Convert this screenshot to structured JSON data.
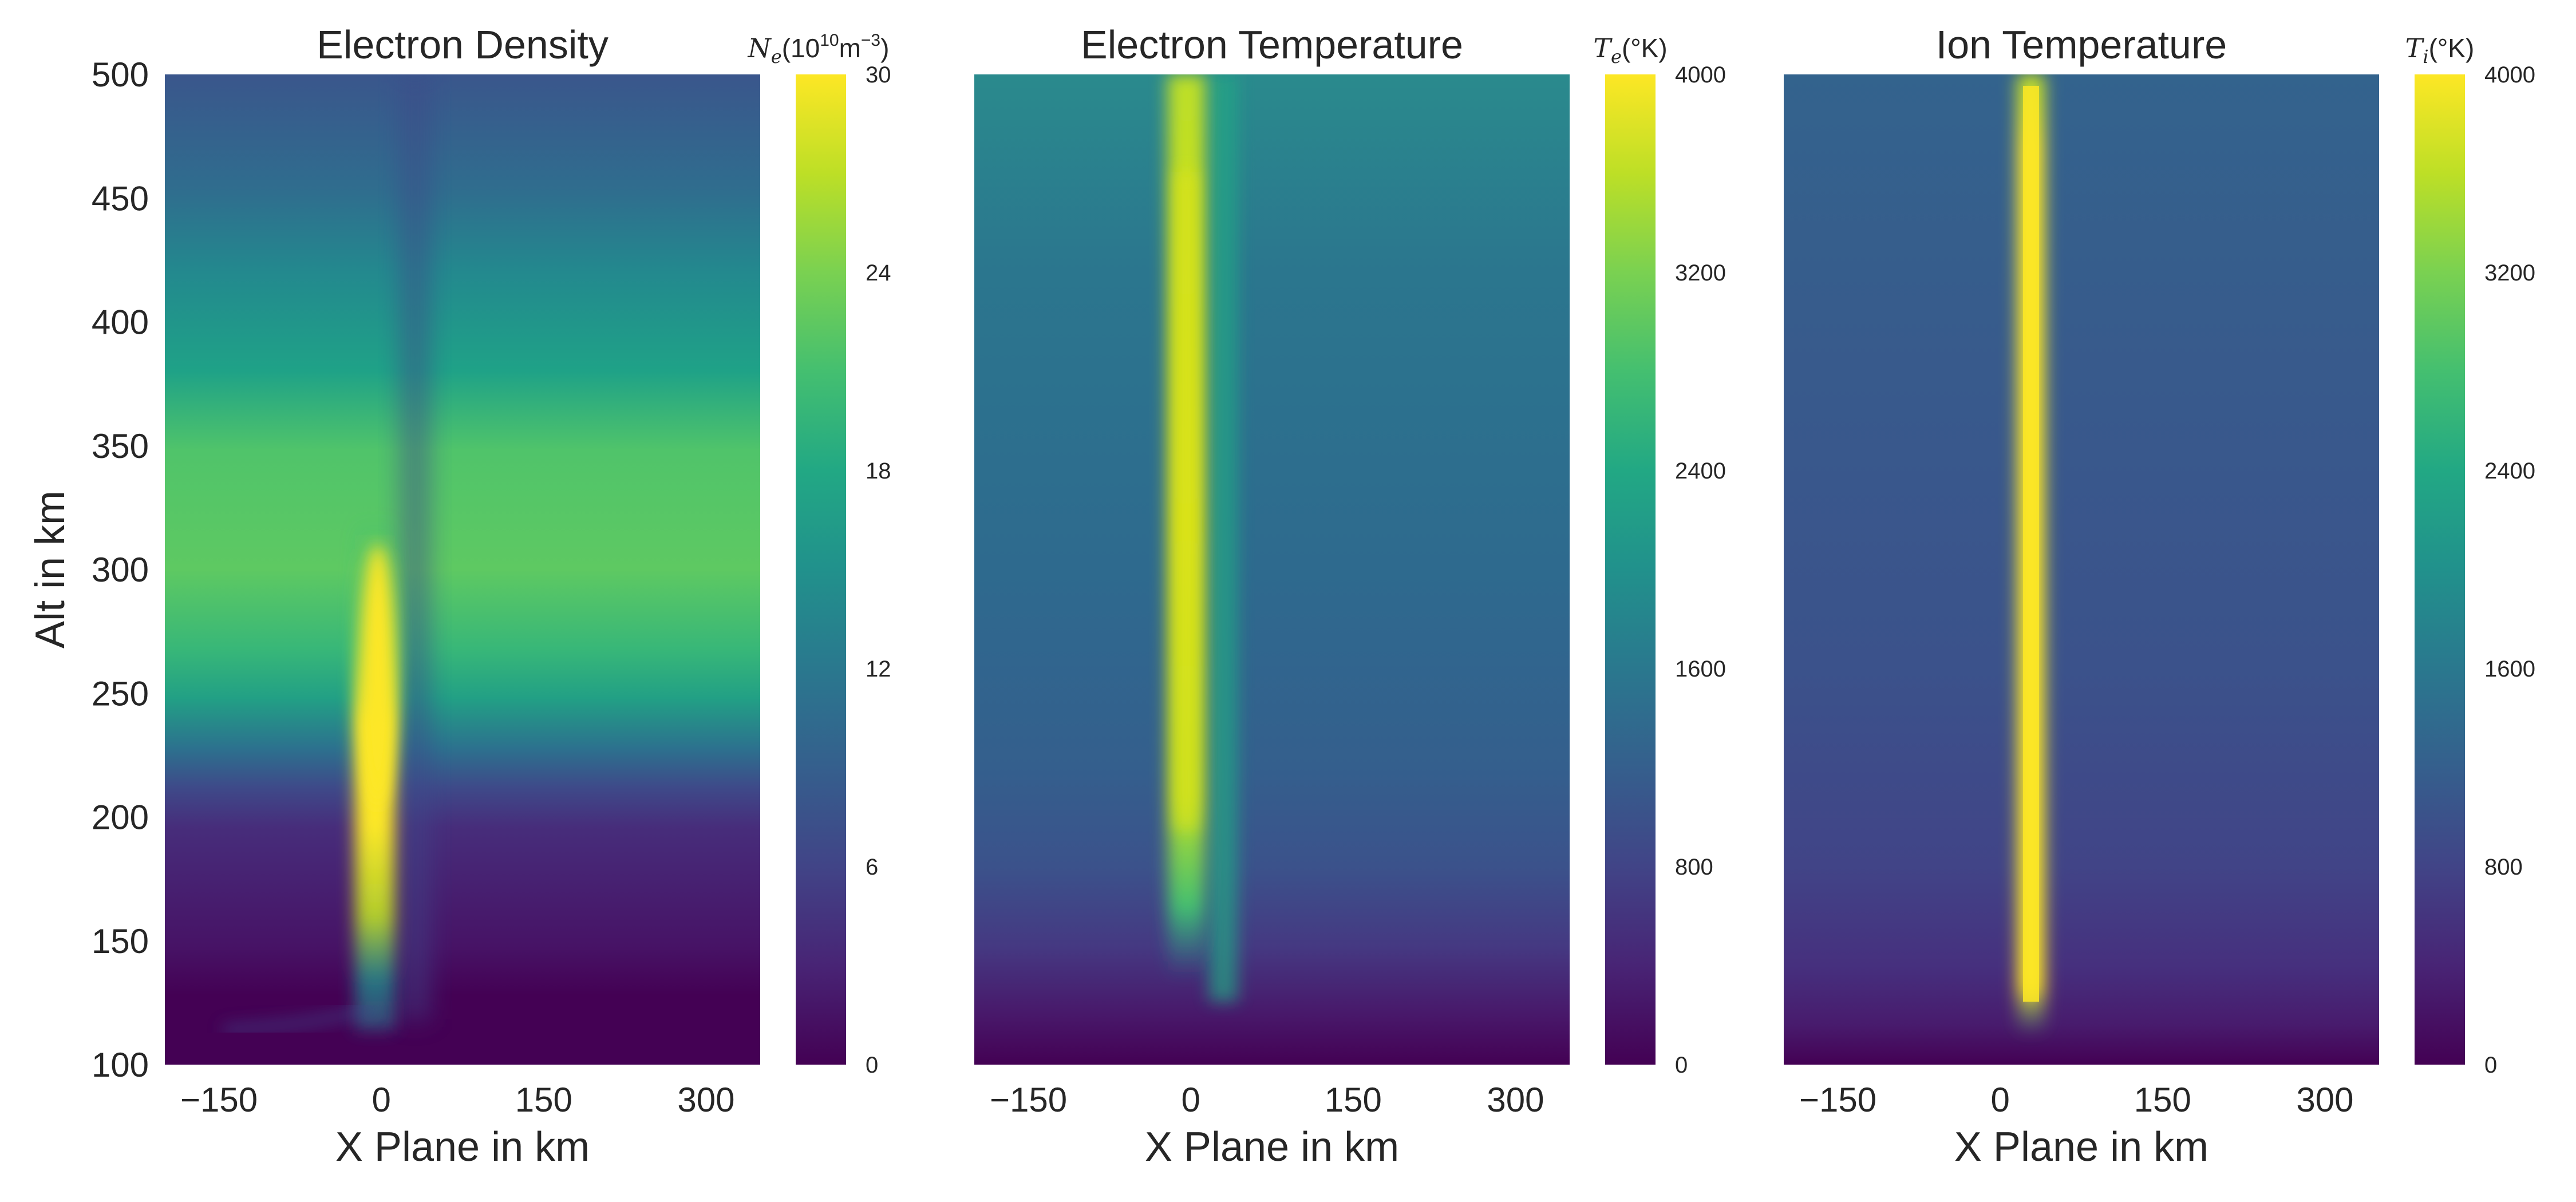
{
  "chart_data": [
    {
      "type": "heatmap",
      "title": "Electron Density",
      "xlabel": "X Plane in km",
      "ylabel": "Alt in km",
      "xlim": [
        -200,
        350
      ],
      "ylim": [
        100,
        500
      ],
      "xticks": [
        "−150",
        "0",
        "150",
        "300"
      ],
      "yticks": [
        "100",
        "150",
        "200",
        "250",
        "300",
        "350",
        "400",
        "450",
        "500"
      ],
      "colorbar": {
        "label": "N_e(10^10 m^-3)",
        "min": 0,
        "max": 30,
        "ticks": [
          "0",
          "6",
          "12",
          "18",
          "24",
          "30"
        ]
      },
      "colormap": [
        "#440154",
        "#3b528b",
        "#21918c",
        "#5ec962",
        "#fde725"
      ],
      "features": [
        {
          "x": 0,
          "alt_low": 180,
          "alt_high": 300,
          "peak_value": 30,
          "label": "enhanced column"
        }
      ]
    },
    {
      "type": "heatmap",
      "title": "Electron Temperature",
      "xlabel": "X Plane in km",
      "ylabel": "",
      "xlim": [
        -200,
        350
      ],
      "ylim": [
        100,
        500
      ],
      "xticks": [
        "−150",
        "0",
        "150",
        "300"
      ],
      "yticks": [],
      "colorbar": {
        "label": "T_e(°K)",
        "min": 0,
        "max": 4000,
        "ticks": [
          "0",
          "800",
          "1600",
          "2400",
          "3200",
          "4000"
        ]
      },
      "colormap": [
        "#440154",
        "#3b528b",
        "#21918c",
        "#5ec962",
        "#fde725"
      ],
      "features": [
        {
          "x": 0,
          "alt_low": 150,
          "alt_high": 500,
          "peak_value": 3700,
          "label": "hot column"
        }
      ]
    },
    {
      "type": "heatmap",
      "title": "Ion Temperature",
      "xlabel": "X Plane in km",
      "ylabel": "",
      "xlim": [
        -200,
        350
      ],
      "ylim": [
        100,
        500
      ],
      "xticks": [
        "−150",
        "0",
        "150",
        "300"
      ],
      "yticks": [],
      "colorbar": {
        "label": "T_i(°K)",
        "min": 0,
        "max": 4000,
        "ticks": [
          "0",
          "800",
          "1600",
          "2400",
          "3200",
          "4000"
        ]
      },
      "colormap": [
        "#440154",
        "#3b528b",
        "#21918c",
        "#5ec962",
        "#fde725"
      ],
      "features": [
        {
          "x": 30,
          "alt_low": 120,
          "alt_high": 500,
          "peak_value": 4000,
          "label": "hot column"
        }
      ]
    }
  ]
}
